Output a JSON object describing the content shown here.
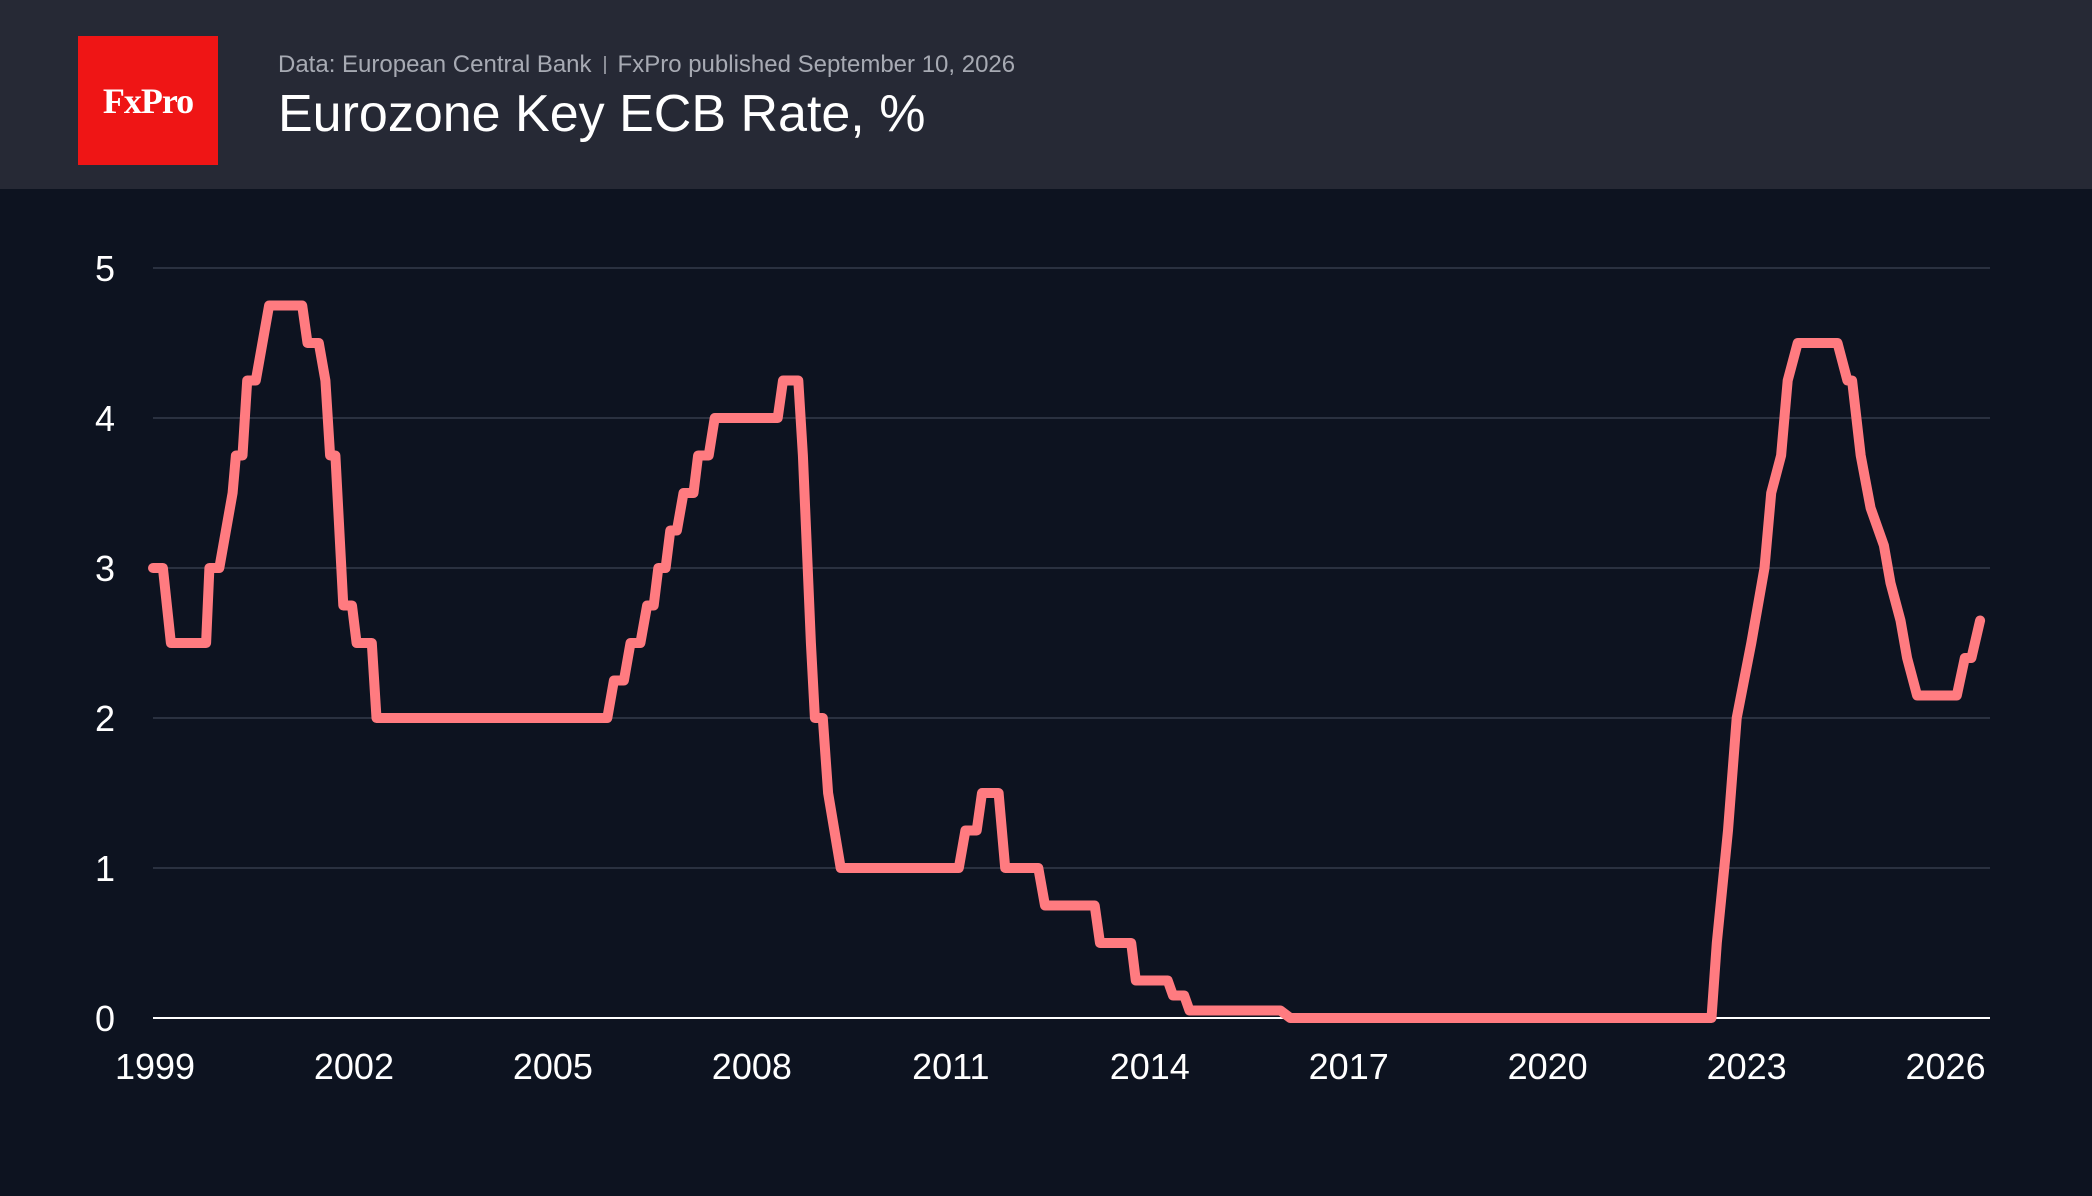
{
  "header": {
    "logo_text": "FxPro",
    "source": "Data: European Central Bank",
    "published": "FxPro published September 10, 2026",
    "title": "Eurozone Key ECB Rate, %"
  },
  "colors": {
    "header_bg": "#262935",
    "plot_bg": "#0d1320",
    "logo_bg": "#ef1515",
    "line": "#ff7b80",
    "grid": "#2a3140",
    "axis": "#ffffff"
  },
  "chart_data": {
    "type": "line",
    "title": "Eurozone Key ECB Rate, %",
    "xlabel": "",
    "ylabel": "",
    "xlim": [
      1999.0,
      2026.7
    ],
    "ylim": [
      0,
      5
    ],
    "grid": true,
    "x_ticks": [
      1999,
      2002,
      2005,
      2008,
      2011,
      2014,
      2017,
      2020,
      2023,
      2026
    ],
    "y_ticks": [
      0,
      1,
      2,
      3,
      4,
      5
    ],
    "series": [
      {
        "name": "",
        "points": [
          [
            1999.0,
            3.0
          ],
          [
            1999.15,
            3.0
          ],
          [
            1999.27,
            2.5
          ],
          [
            1999.8,
            2.5
          ],
          [
            1999.85,
            3.0
          ],
          [
            2000.0,
            3.0
          ],
          [
            2000.2,
            3.5
          ],
          [
            2000.25,
            3.75
          ],
          [
            2000.35,
            3.75
          ],
          [
            2000.42,
            4.25
          ],
          [
            2000.55,
            4.25
          ],
          [
            2000.75,
            4.75
          ],
          [
            2001.25,
            4.75
          ],
          [
            2001.33,
            4.5
          ],
          [
            2001.5,
            4.5
          ],
          [
            2001.6,
            4.25
          ],
          [
            2001.67,
            3.75
          ],
          [
            2001.75,
            3.75
          ],
          [
            2001.87,
            2.75
          ],
          [
            2002.0,
            2.75
          ],
          [
            2002.07,
            2.5
          ],
          [
            2002.3,
            2.5
          ],
          [
            2002.37,
            2.0
          ],
          [
            2005.85,
            2.0
          ],
          [
            2005.95,
            2.25
          ],
          [
            2006.1,
            2.25
          ],
          [
            2006.2,
            2.5
          ],
          [
            2006.35,
            2.5
          ],
          [
            2006.45,
            2.75
          ],
          [
            2006.55,
            2.75
          ],
          [
            2006.62,
            3.0
          ],
          [
            2006.73,
            3.0
          ],
          [
            2006.8,
            3.25
          ],
          [
            2006.9,
            3.25
          ],
          [
            2007.0,
            3.5
          ],
          [
            2007.15,
            3.5
          ],
          [
            2007.22,
            3.75
          ],
          [
            2007.38,
            3.75
          ],
          [
            2007.47,
            4.0
          ],
          [
            2008.42,
            4.0
          ],
          [
            2008.5,
            4.25
          ],
          [
            2008.73,
            4.25
          ],
          [
            2008.8,
            3.75
          ],
          [
            2008.92,
            2.5
          ],
          [
            2008.98,
            2.0
          ],
          [
            2009.1,
            2.0
          ],
          [
            2009.18,
            1.5
          ],
          [
            2009.37,
            1.0
          ],
          [
            2011.15,
            1.0
          ],
          [
            2011.25,
            1.25
          ],
          [
            2011.42,
            1.25
          ],
          [
            2011.5,
            1.5
          ],
          [
            2011.75,
            1.5
          ],
          [
            2011.85,
            1.0
          ],
          [
            2012.35,
            1.0
          ],
          [
            2012.45,
            0.75
          ],
          [
            2013.2,
            0.75
          ],
          [
            2013.28,
            0.5
          ],
          [
            2013.75,
            0.5
          ],
          [
            2013.82,
            0.25
          ],
          [
            2014.3,
            0.25
          ],
          [
            2014.38,
            0.15
          ],
          [
            2014.55,
            0.15
          ],
          [
            2014.63,
            0.05
          ],
          [
            2016.0,
            0.05
          ],
          [
            2016.15,
            0.0
          ],
          [
            2022.5,
            0.0
          ],
          [
            2022.58,
            0.5
          ],
          [
            2022.75,
            1.25
          ],
          [
            2022.88,
            2.0
          ],
          [
            2023.1,
            2.5
          ],
          [
            2023.3,
            3.0
          ],
          [
            2023.4,
            3.5
          ],
          [
            2023.55,
            3.75
          ],
          [
            2023.65,
            4.25
          ],
          [
            2023.8,
            4.5
          ],
          [
            2024.4,
            4.5
          ],
          [
            2024.55,
            4.25
          ],
          [
            2024.62,
            4.25
          ],
          [
            2024.75,
            3.75
          ],
          [
            2024.9,
            3.4
          ],
          [
            2025.1,
            3.15
          ],
          [
            2025.2,
            2.9
          ],
          [
            2025.35,
            2.65
          ],
          [
            2025.45,
            2.4
          ],
          [
            2025.6,
            2.15
          ],
          [
            2026.2,
            2.15
          ],
          [
            2026.32,
            2.4
          ],
          [
            2026.42,
            2.4
          ],
          [
            2026.55,
            2.65
          ]
        ]
      }
    ]
  }
}
